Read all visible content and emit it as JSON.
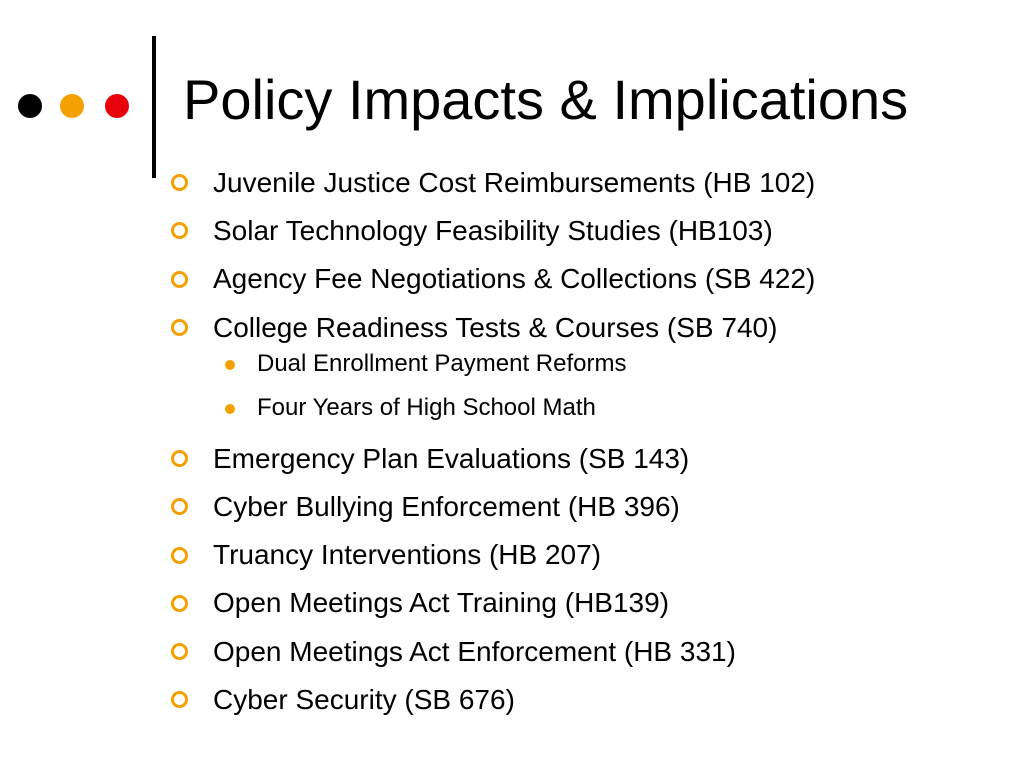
{
  "colors": {
    "dot_left": "#000000",
    "dot_middle": "#f5a000",
    "dot_right": "#e8000b",
    "bullet_ring": "#f5a000",
    "sub_bullet": "#f5a000",
    "text": "#000000"
  },
  "slide": {
    "title": "Policy Impacts & Implications",
    "bullets": [
      {
        "text": "Juvenile Justice Cost Reimbursements (HB 102)"
      },
      {
        "text": "Solar Technology Feasibility Studies (HB103)"
      },
      {
        "text": "Agency Fee Negotiations & Collections (SB 422)"
      },
      {
        "text": "College Readiness Tests & Courses (SB 740)",
        "sub_items": [
          "Dual Enrollment Payment Reforms",
          "Four Years of High School Math"
        ]
      },
      {
        "text": "Emergency Plan Evaluations (SB 143)"
      },
      {
        "text": "Cyber Bullying Enforcement (HB 396)"
      },
      {
        "text": "Truancy Interventions (HB 207)"
      },
      {
        "text": "Open Meetings Act Training (HB139)"
      },
      {
        "text": "Open Meetings Act Enforcement (HB 331)"
      },
      {
        "text": "Cyber Security (SB 676)"
      }
    ]
  }
}
